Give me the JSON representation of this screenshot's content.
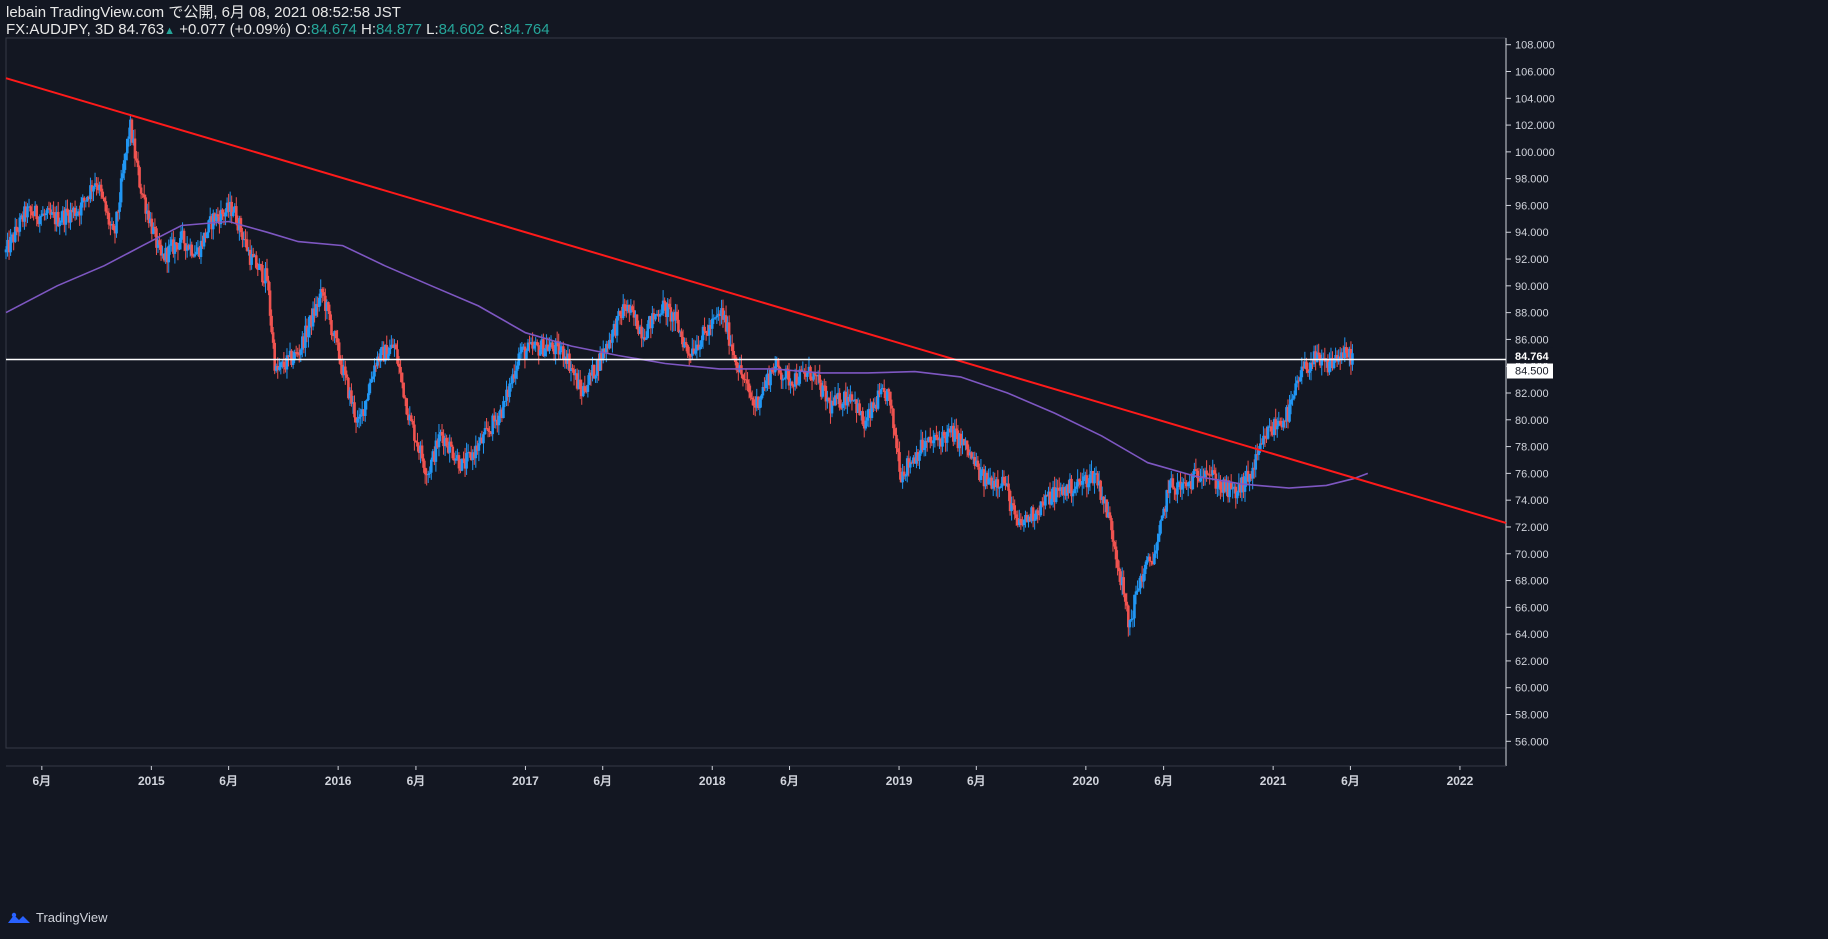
{
  "header": {
    "publisher_line": "lebain TradingView.com で公開, 6月 08, 2021 08:52:58 JST",
    "symbol": "FX:AUDJPY, 3D",
    "last": "84.763",
    "change": "+0.077 (+0.09%)",
    "o_label": "O:",
    "o_value": "84.674",
    "h_label": "H:",
    "h_value": "84.877",
    "l_label": "L:",
    "l_value": "84.602",
    "c_label": "C:",
    "c_value": "84.764"
  },
  "footer": {
    "brand": "TradingView",
    "logo_icon": "tradingview-logo-icon"
  },
  "colors": {
    "background": "#131722",
    "up_candle": "#2196f3",
    "down_candle": "#ef5350",
    "trendline": "#ff1a1a",
    "moving_average": "#7e57c2",
    "price_line": "#ffffff",
    "axis_text": "#d1d4dc",
    "positive": "#26a69a"
  },
  "chart_data": {
    "type": "candlestick",
    "symbol": "FX:AUDJPY",
    "interval": "3D",
    "ylim": [
      55.5,
      108.5
    ],
    "y_ticks": [
      "108.000",
      "106.000",
      "104.000",
      "102.000",
      "100.000",
      "98.000",
      "96.000",
      "94.000",
      "92.000",
      "90.000",
      "88.000",
      "86.000",
      "84.000",
      "82.000",
      "80.000",
      "78.000",
      "76.000",
      "74.000",
      "72.000",
      "70.000",
      "68.000",
      "66.000",
      "64.000",
      "62.000",
      "60.000",
      "58.000",
      "56.000"
    ],
    "x_ticks": [
      "6月",
      "2015",
      "6月",
      "2016",
      "6月",
      "2017",
      "6月",
      "2018",
      "6月",
      "2019",
      "6月",
      "2020",
      "6月",
      "2021",
      "6月",
      "2022"
    ],
    "x_tick_dates": [
      "2014-06-01",
      "2015-01-01",
      "2015-06-01",
      "2016-01-01",
      "2016-06-01",
      "2017-01-01",
      "2017-06-01",
      "2018-01-01",
      "2018-06-01",
      "2019-01-01",
      "2019-06-01",
      "2020-01-01",
      "2020-06-01",
      "2021-01-01",
      "2021-06-01",
      "2022-01-01"
    ],
    "x_range": [
      "2014-03-23",
      "2022-04-01"
    ],
    "price_path": [
      [
        "2014-03-23",
        92.5
      ],
      [
        "2014-05-01",
        95.5
      ],
      [
        "2014-07-01",
        95.0
      ],
      [
        "2014-08-15",
        95.8
      ],
      [
        "2014-09-15",
        98.0
      ],
      [
        "2014-10-20",
        93.5
      ],
      [
        "2014-11-20",
        102.0
      ],
      [
        "2014-12-10",
        97.5
      ],
      [
        "2015-01-20",
        92.0
      ],
      [
        "2015-03-01",
        93.5
      ],
      [
        "2015-04-01",
        92.5
      ],
      [
        "2015-05-01",
        95.0
      ],
      [
        "2015-06-10",
        95.8
      ],
      [
        "2015-07-15",
        92.0
      ],
      [
        "2015-08-15",
        90.5
      ],
      [
        "2015-09-01",
        83.5
      ],
      [
        "2015-10-15",
        85.0
      ],
      [
        "2015-12-01",
        89.5
      ],
      [
        "2016-01-15",
        83.0
      ],
      [
        "2016-02-10",
        79.5
      ],
      [
        "2016-03-15",
        84.5
      ],
      [
        "2016-04-20",
        85.5
      ],
      [
        "2016-05-20",
        80.0
      ],
      [
        "2016-06-24",
        76.0
      ],
      [
        "2016-07-20",
        79.0
      ],
      [
        "2016-09-01",
        76.5
      ],
      [
        "2016-10-10",
        78.5
      ],
      [
        "2016-11-20",
        81.0
      ],
      [
        "2016-12-20",
        85.0
      ],
      [
        "2017-02-10",
        85.5
      ],
      [
        "2017-03-20",
        85.0
      ],
      [
        "2017-04-20",
        82.0
      ],
      [
        "2017-05-20",
        84.0
      ],
      [
        "2017-07-15",
        88.5
      ],
      [
        "2017-08-20",
        86.5
      ],
      [
        "2017-09-25",
        88.5
      ],
      [
        "2017-10-20",
        87.5
      ],
      [
        "2017-11-15",
        85.0
      ],
      [
        "2017-12-20",
        86.5
      ],
      [
        "2018-01-20",
        88.0
      ],
      [
        "2018-02-20",
        84.0
      ],
      [
        "2018-03-25",
        81.0
      ],
      [
        "2018-05-01",
        84.0
      ],
      [
        "2018-06-01",
        83.0
      ],
      [
        "2018-07-15",
        83.5
      ],
      [
        "2018-08-20",
        81.0
      ],
      [
        "2018-10-01",
        82.0
      ],
      [
        "2018-10-25",
        79.5
      ],
      [
        "2018-11-20",
        81.5
      ],
      [
        "2018-12-10",
        82.0
      ],
      [
        "2018-12-28",
        78.0
      ],
      [
        "2019-01-05",
        76.0
      ],
      [
        "2019-02-15",
        78.0
      ],
      [
        "2019-04-15",
        79.0
      ],
      [
        "2019-05-10",
        78.0
      ],
      [
        "2019-06-15",
        75.5
      ],
      [
        "2019-07-25",
        75.5
      ],
      [
        "2019-08-20",
        72.0
      ],
      [
        "2019-09-20",
        73.0
      ],
      [
        "2019-10-30",
        74.5
      ],
      [
        "2019-12-10",
        75.0
      ],
      [
        "2020-01-20",
        76.0
      ],
      [
        "2020-02-20",
        72.0
      ],
      [
        "2020-03-15",
        67.0
      ],
      [
        "2020-03-25",
        64.5
      ],
      [
        "2020-04-15",
        68.0
      ],
      [
        "2020-05-20",
        70.5
      ],
      [
        "2020-06-10",
        75.0
      ],
      [
        "2020-07-15",
        75.0
      ],
      [
        "2020-08-20",
        76.5
      ],
      [
        "2020-09-20",
        75.0
      ],
      [
        "2020-10-20",
        74.5
      ],
      [
        "2020-11-20",
        76.0
      ],
      [
        "2020-12-20",
        79.0
      ],
      [
        "2021-02-01",
        80.5
      ],
      [
        "2021-02-25",
        83.5
      ],
      [
        "2021-03-20",
        84.5
      ],
      [
        "2021-04-15",
        84.0
      ],
      [
        "2021-05-10",
        84.8
      ],
      [
        "2021-06-07",
        84.76
      ]
    ],
    "moving_average": [
      [
        "2014-03-23",
        88.0
      ],
      [
        "2014-07-01",
        90.0
      ],
      [
        "2014-10-01",
        91.5
      ],
      [
        "2014-12-15",
        93.0
      ],
      [
        "2015-03-01",
        94.5
      ],
      [
        "2015-06-01",
        94.8
      ],
      [
        "2015-08-15",
        94.0
      ],
      [
        "2015-10-15",
        93.3
      ],
      [
        "2016-01-10",
        93.0
      ],
      [
        "2016-04-01",
        91.5
      ],
      [
        "2016-07-01",
        90.0
      ],
      [
        "2016-10-01",
        88.5
      ],
      [
        "2017-01-01",
        86.5
      ],
      [
        "2017-04-01",
        85.5
      ],
      [
        "2017-07-01",
        84.8
      ],
      [
        "2017-10-01",
        84.2
      ],
      [
        "2018-01-15",
        83.8
      ],
      [
        "2018-05-01",
        83.8
      ],
      [
        "2018-08-01",
        83.5
      ],
      [
        "2018-11-01",
        83.5
      ],
      [
        "2019-02-01",
        83.6
      ],
      [
        "2019-05-01",
        83.2
      ],
      [
        "2019-08-01",
        82.0
      ],
      [
        "2019-11-01",
        80.5
      ],
      [
        "2020-02-01",
        78.8
      ],
      [
        "2020-05-01",
        76.8
      ],
      [
        "2020-08-01",
        75.8
      ],
      [
        "2020-11-01",
        75.2
      ],
      [
        "2021-02-01",
        74.9
      ],
      [
        "2021-04-15",
        75.1
      ],
      [
        "2021-06-07",
        75.6
      ],
      [
        "2021-07-05",
        76.0
      ]
    ],
    "trendline": {
      "start": [
        "2014-03-23",
        105.5
      ],
      "end": [
        "2022-04-01",
        72.3
      ]
    },
    "horizontal_line": 84.5,
    "current_price": {
      "value": 84.764,
      "label": "84.764"
    },
    "horizontal_line_label": "84.500"
  }
}
